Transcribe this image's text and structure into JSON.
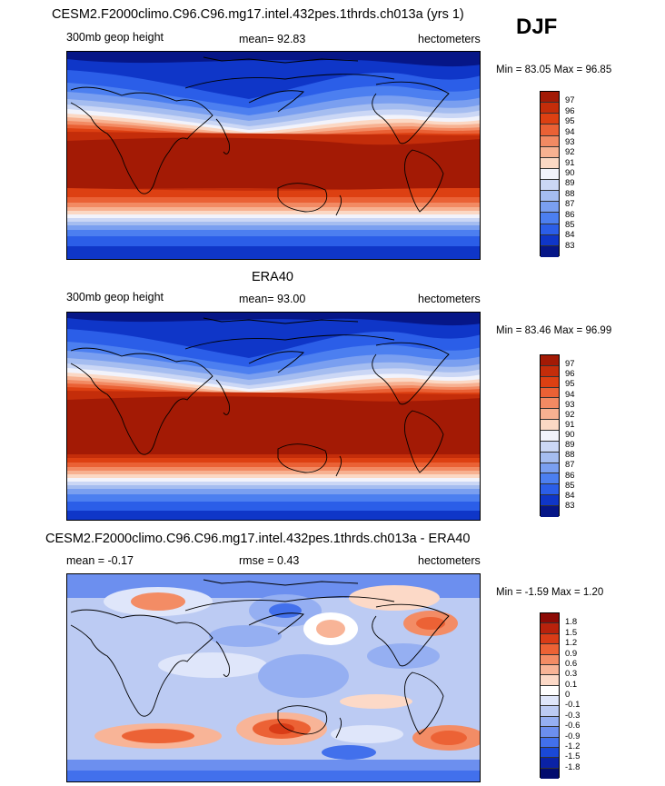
{
  "season": "DJF",
  "panels": [
    {
      "title": "CESM2.F2000climo.C96.C96.mg17.intel.432pes.1thrds.ch013a (yrs 1)",
      "left_label": "300mb geop height",
      "center_label": "mean=  92.83",
      "right_label": "hectometers",
      "minmax": "Min =  83.05 Max =  96.85"
    },
    {
      "title": "ERA40",
      "left_label": "300mb geop height",
      "center_label": "mean=  93.00",
      "right_label": "hectometers",
      "minmax": "Min =  83.46 Max =  96.99"
    },
    {
      "title": "CESM2.F2000climo.C96.C96.mg17.intel.432pes.1thrds.ch013a - ERA40",
      "left_label": "mean =  -0.17",
      "center_label": "rmse =   0.43",
      "right_label": "hectometers",
      "minmax": "Min =  -1.59 Max =    1.20"
    }
  ],
  "chart_data": [
    {
      "type": "heatmap",
      "title": "CESM2.F2000climo.C96.C96.mg17.intel.432pes.1thrds.ch013a (yrs 1)",
      "variable": "300mb geop height",
      "units": "hectometers",
      "mean": 92.83,
      "min": 83.05,
      "max": 96.85,
      "colorbar_levels": [
        "97",
        "96",
        "95",
        "94",
        "93",
        "92",
        "91",
        "90",
        "89",
        "88",
        "87",
        "86",
        "85",
        "84",
        "83"
      ],
      "colorbar_colors": [
        "#a31a05",
        "#c42d0a",
        "#dd4012",
        "#ea6135",
        "#f28a63",
        "#f7b191",
        "#fbd8c4",
        "#f2f3fb",
        "#cbd7f5",
        "#a5bdf0",
        "#7a9ff0",
        "#4c7ff0",
        "#2b5ee8",
        "#0f36c8",
        "#061687"
      ]
    },
    {
      "type": "heatmap",
      "title": "ERA40",
      "variable": "300mb geop height",
      "units": "hectometers",
      "mean": 93.0,
      "min": 83.46,
      "max": 96.99,
      "colorbar_levels": [
        "97",
        "96",
        "95",
        "94",
        "93",
        "92",
        "91",
        "90",
        "89",
        "88",
        "87",
        "86",
        "85",
        "84",
        "83"
      ],
      "colorbar_colors": [
        "#a31a05",
        "#c42d0a",
        "#dd4012",
        "#ea6135",
        "#f28a63",
        "#f7b191",
        "#fbd8c4",
        "#f2f3fb",
        "#cbd7f5",
        "#a5bdf0",
        "#7a9ff0",
        "#4c7ff0",
        "#2b5ee8",
        "#0f36c8",
        "#061687"
      ]
    },
    {
      "type": "heatmap",
      "title": "CESM2.F2000climo.C96.C96.mg17.intel.432pes.1thrds.ch013a - ERA40",
      "units": "hectometers",
      "mean": -0.17,
      "rmse": 0.43,
      "min": -1.59,
      "max": 1.2,
      "colorbar_levels": [
        "1.8",
        "1.5",
        "1.2",
        "0.9",
        "0.6",
        "0.3",
        "0.1",
        "0",
        "-0.1",
        "-0.3",
        "-0.6",
        "-0.9",
        "-1.2",
        "-1.5",
        "-1.8"
      ],
      "colorbar_colors": [
        "#8c0a05",
        "#b8220c",
        "#d93c17",
        "#ec6235",
        "#f38c65",
        "#f8b497",
        "#fcd9c7",
        "#ffffff",
        "#dfe6fa",
        "#bccbf3",
        "#95aff2",
        "#6c8fef",
        "#4270ec",
        "#1a48d6",
        "#0a22a6",
        "#020c6e"
      ]
    }
  ]
}
